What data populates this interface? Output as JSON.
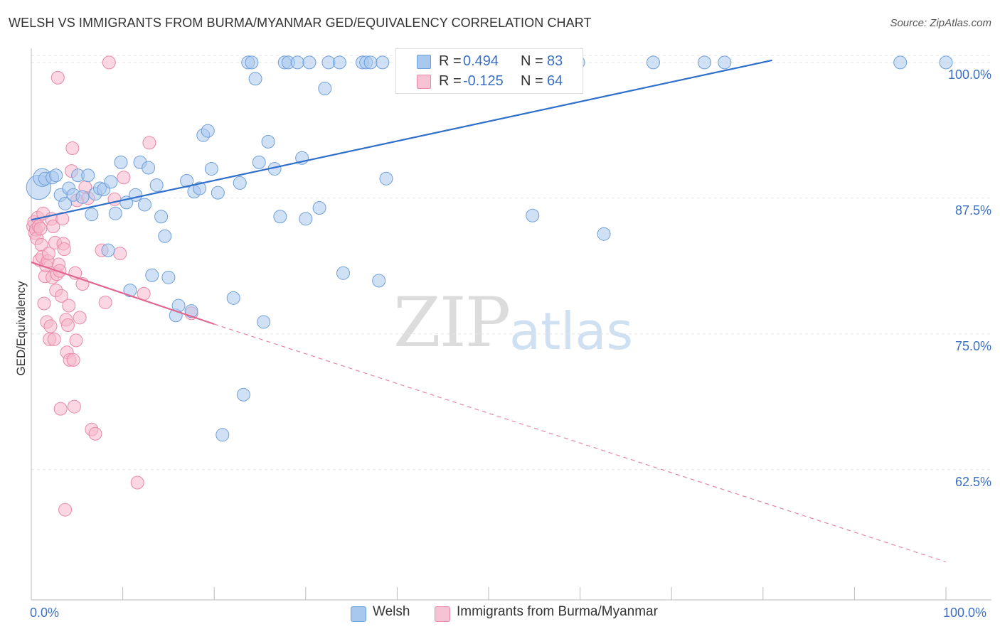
{
  "title": "WELSH VS IMMIGRANTS FROM BURMA/MYANMAR GED/EQUIVALENCY CORRELATION CHART",
  "source": "Source: ZipAtlas.com",
  "watermark": {
    "zip": "ZIP",
    "atlas": "atlas"
  },
  "legend": {
    "welsh": {
      "r_label": "R =",
      "r_value": "0.494",
      "n_label": "N =",
      "n_value": "83"
    },
    "burma": {
      "r_label": "R =",
      "r_value": "-0.125",
      "n_label": "N =",
      "n_value": "64"
    }
  },
  "bottom_legend": {
    "welsh": "Welsh",
    "burma": "Immigrants from Burma/Myanmar"
  },
  "colors": {
    "welsh_fill": "#a9c8ee",
    "welsh_stroke": "#6f9fd8",
    "welsh_line": "#2e6fcc",
    "burma_fill": "#f5b7cb",
    "burma_stroke": "#e889a8",
    "burma_line": "#e06691",
    "grid": "#e3e3e3",
    "axis_text": "#3a6fc4"
  },
  "chart_data": {
    "type": "scatter",
    "title": "WELSH VS IMMIGRANTS FROM BURMA/MYANMAR GED/EQUIVALENCY CORRELATION CHART",
    "xlabel": "",
    "ylabel": "GED/Equivalency",
    "xlim": [
      0,
      100
    ],
    "ylim": [
      50.5,
      101.3
    ],
    "x_tick_labels": [
      "0.0%",
      "100.0%"
    ],
    "y_ticks": [
      {
        "value": 100,
        "label": "100.0%"
      },
      {
        "value": 87.5,
        "label": "87.5%"
      },
      {
        "value": 75,
        "label": "75.0%"
      },
      {
        "value": 62.5,
        "label": "62.5%"
      }
    ],
    "series": [
      {
        "name": "Welsh",
        "r": 0.494,
        "n": 83,
        "trend": {
          "x0": 0,
          "y0": 85.5,
          "x1": 81,
          "y1": 100.2,
          "dashed_to": null
        },
        "points": [
          [
            0.8,
            88.5,
            1.9
          ],
          [
            1.2,
            89.4,
            1.4
          ],
          [
            1.5,
            89.3,
            1.0
          ],
          [
            2.3,
            89.4,
            1.0
          ],
          [
            2.7,
            89.6,
            1.0
          ],
          [
            3.2,
            87.8,
            1.0
          ],
          [
            3.7,
            87.0,
            1.0
          ],
          [
            4.1,
            88.4,
            1.0
          ],
          [
            4.6,
            87.8,
            1.0
          ],
          [
            5.1,
            89.6,
            1.0
          ],
          [
            5.6,
            87.6,
            1.0
          ],
          [
            6.2,
            89.6,
            1.0
          ],
          [
            6.6,
            86.0,
            1.0
          ],
          [
            7.0,
            87.9,
            1.0
          ],
          [
            7.5,
            88.4,
            1.0
          ],
          [
            7.9,
            88.3,
            1.0
          ],
          [
            8.4,
            82.7,
            1.0
          ],
          [
            8.7,
            89.0,
            1.0
          ],
          [
            9.2,
            86.1,
            1.0
          ],
          [
            9.8,
            90.8,
            1.0
          ],
          [
            10.4,
            87.1,
            1.0
          ],
          [
            10.8,
            79.0,
            1.0
          ],
          [
            11.4,
            87.8,
            1.0
          ],
          [
            11.9,
            90.8,
            1.0
          ],
          [
            12.4,
            86.9,
            1.0
          ],
          [
            12.8,
            90.3,
            1.0
          ],
          [
            13.2,
            80.4,
            1.0
          ],
          [
            13.7,
            88.7,
            1.0
          ],
          [
            14.2,
            85.8,
            1.0
          ],
          [
            14.6,
            84.0,
            1.0
          ],
          [
            15.0,
            80.2,
            1.0
          ],
          [
            15.8,
            76.7,
            1.0
          ],
          [
            16.1,
            77.6,
            1.0
          ],
          [
            17.0,
            89.1,
            1.0
          ],
          [
            17.5,
            77.1,
            1.0
          ],
          [
            17.8,
            88.1,
            1.0
          ],
          [
            18.4,
            88.4,
            1.0
          ],
          [
            18.8,
            93.3,
            1.0
          ],
          [
            19.3,
            93.7,
            1.0
          ],
          [
            19.7,
            90.2,
            1.0
          ],
          [
            20.4,
            88.0,
            1.0
          ],
          [
            20.9,
            65.7,
            1.0
          ],
          [
            22.1,
            78.3,
            1.0
          ],
          [
            22.8,
            88.9,
            1.0
          ],
          [
            23.2,
            69.4,
            1.0
          ],
          [
            23.7,
            100.0,
            1.0
          ],
          [
            24.1,
            100.0,
            1.0
          ],
          [
            24.5,
            98.5,
            1.0
          ],
          [
            24.9,
            90.8,
            1.0
          ],
          [
            25.4,
            76.1,
            1.0
          ],
          [
            25.9,
            92.7,
            1.0
          ],
          [
            26.6,
            90.2,
            1.0
          ],
          [
            27.2,
            85.8,
            1.0
          ],
          [
            27.7,
            100.0,
            1.0
          ],
          [
            28.1,
            100.0,
            1.0
          ],
          [
            29.1,
            100.0,
            1.0
          ],
          [
            29.6,
            91.2,
            1.0
          ],
          [
            30.0,
            85.6,
            1.0
          ],
          [
            30.4,
            100.0,
            1.0
          ],
          [
            31.5,
            86.6,
            1.0
          ],
          [
            32.1,
            97.6,
            1.0
          ],
          [
            32.5,
            100.0,
            1.0
          ],
          [
            33.7,
            100.0,
            1.0
          ],
          [
            34.1,
            80.6,
            1.0
          ],
          [
            36.2,
            100.0,
            1.0
          ],
          [
            36.6,
            100.0,
            1.0
          ],
          [
            37.1,
            100.0,
            1.0
          ],
          [
            38.0,
            79.9,
            1.0
          ],
          [
            38.4,
            100.0,
            1.0
          ],
          [
            38.8,
            89.3,
            1.0
          ],
          [
            40.7,
            100.0,
            1.0
          ],
          [
            42.0,
            100.0,
            1.0
          ],
          [
            44.0,
            100.0,
            1.0
          ],
          [
            47.2,
            100.0,
            1.0
          ],
          [
            47.7,
            100.0,
            1.0
          ],
          [
            54.8,
            85.9,
            1.0
          ],
          [
            59.8,
            100.0,
            1.0
          ],
          [
            62.6,
            84.2,
            1.0
          ],
          [
            68.0,
            100.0,
            1.0
          ],
          [
            73.6,
            100.0,
            1.0
          ],
          [
            75.8,
            100.0,
            1.0
          ],
          [
            95.0,
            100.0,
            1.0
          ],
          [
            100.0,
            100.0,
            1.0
          ]
        ]
      },
      {
        "name": "Immigrants from Burma/Myanmar",
        "r": -0.125,
        "n": 64,
        "trend": {
          "x0": 0,
          "y0": 81.6,
          "x1": 20,
          "y1": 75.9,
          "dashed_to": {
            "x": 100,
            "y": 54
          }
        },
        "points": [
          [
            0.2,
            84.9,
            1.0
          ],
          [
            0.3,
            85.3,
            1.0
          ],
          [
            0.4,
            84.3,
            1.0
          ],
          [
            0.5,
            84.6,
            1.0
          ],
          [
            0.6,
            83.8,
            1.0
          ],
          [
            0.7,
            85.7,
            1.0
          ],
          [
            0.8,
            84.9,
            1.0
          ],
          [
            0.9,
            81.8,
            1.0
          ],
          [
            1.0,
            84.7,
            1.0
          ],
          [
            1.1,
            83.2,
            1.0
          ],
          [
            1.2,
            82.1,
            1.0
          ],
          [
            1.3,
            86.1,
            1.0
          ],
          [
            1.4,
            77.8,
            1.0
          ],
          [
            1.5,
            80.3,
            1.0
          ],
          [
            1.6,
            81.3,
            1.0
          ],
          [
            1.7,
            76.1,
            1.0
          ],
          [
            1.8,
            81.7,
            1.0
          ],
          [
            1.9,
            82.4,
            1.0
          ],
          [
            2.0,
            74.5,
            1.0
          ],
          [
            2.1,
            75.7,
            1.0
          ],
          [
            2.2,
            85.6,
            1.0
          ],
          [
            2.3,
            80.2,
            1.0
          ],
          [
            2.4,
            84.9,
            1.0
          ],
          [
            2.5,
            74.5,
            1.0
          ],
          [
            2.6,
            83.4,
            1.0
          ],
          [
            2.7,
            79.0,
            1.0
          ],
          [
            2.8,
            80.5,
            1.0
          ],
          [
            2.9,
            98.6,
            1.0
          ],
          [
            3.0,
            81.4,
            1.0
          ],
          [
            3.1,
            80.8,
            1.0
          ],
          [
            3.2,
            68.1,
            1.0
          ],
          [
            3.3,
            78.5,
            1.0
          ],
          [
            3.4,
            85.6,
            1.0
          ],
          [
            3.5,
            83.3,
            1.0
          ],
          [
            3.6,
            82.8,
            1.0
          ],
          [
            3.7,
            58.8,
            1.0
          ],
          [
            3.8,
            76.3,
            1.0
          ],
          [
            3.9,
            73.3,
            1.0
          ],
          [
            4.0,
            75.8,
            1.0
          ],
          [
            4.1,
            77.6,
            1.0
          ],
          [
            4.2,
            72.6,
            1.0
          ],
          [
            4.4,
            90.0,
            1.0
          ],
          [
            4.5,
            92.1,
            1.0
          ],
          [
            4.6,
            72.6,
            1.0
          ],
          [
            4.7,
            68.3,
            1.0
          ],
          [
            4.8,
            80.6,
            1.0
          ],
          [
            4.9,
            74.4,
            1.0
          ],
          [
            5.0,
            87.3,
            1.0
          ],
          [
            5.3,
            76.5,
            1.0
          ],
          [
            5.6,
            79.6,
            1.0
          ],
          [
            5.9,
            88.5,
            1.0
          ],
          [
            6.2,
            87.5,
            1.0
          ],
          [
            6.6,
            66.2,
            1.0
          ],
          [
            7.0,
            65.8,
            1.0
          ],
          [
            7.7,
            82.7,
            1.0
          ],
          [
            8.1,
            77.9,
            1.0
          ],
          [
            8.5,
            100.0,
            1.0
          ],
          [
            9.1,
            87.4,
            1.0
          ],
          [
            9.7,
            82.4,
            1.0
          ],
          [
            10.1,
            89.4,
            1.0
          ],
          [
            11.6,
            61.3,
            1.0
          ],
          [
            12.3,
            78.7,
            1.0
          ],
          [
            12.9,
            92.6,
            1.0
          ],
          [
            17.5,
            76.9,
            1.0
          ]
        ]
      }
    ]
  }
}
